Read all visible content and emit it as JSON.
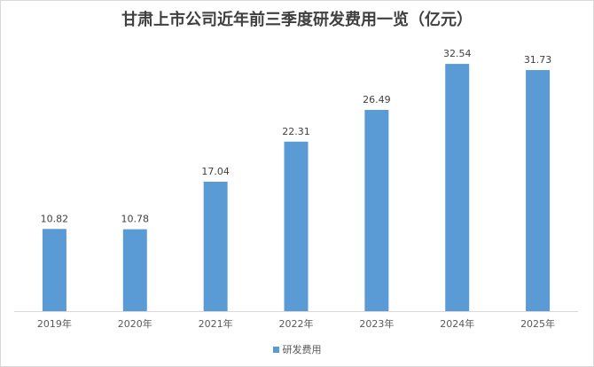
{
  "chart_data": {
    "type": "bar",
    "title": "甘肃上市公司近年前三季度研发费用一览（亿元）",
    "categories": [
      "2019年",
      "2020年",
      "2021年",
      "2022年",
      "2023年",
      "2024年",
      "2025年"
    ],
    "series": [
      {
        "name": "研发费用",
        "values": [
          10.82,
          10.78,
          17.04,
          22.31,
          26.49,
          32.54,
          31.73
        ],
        "color": "#5b9bd5"
      }
    ],
    "data_labels": [
      "10.82",
      "10.78",
      "17.04",
      "22.31",
      "26.49",
      "32.54",
      "31.73"
    ],
    "ylim": [
      0,
      35
    ],
    "grid": false,
    "legend": "bottom"
  }
}
